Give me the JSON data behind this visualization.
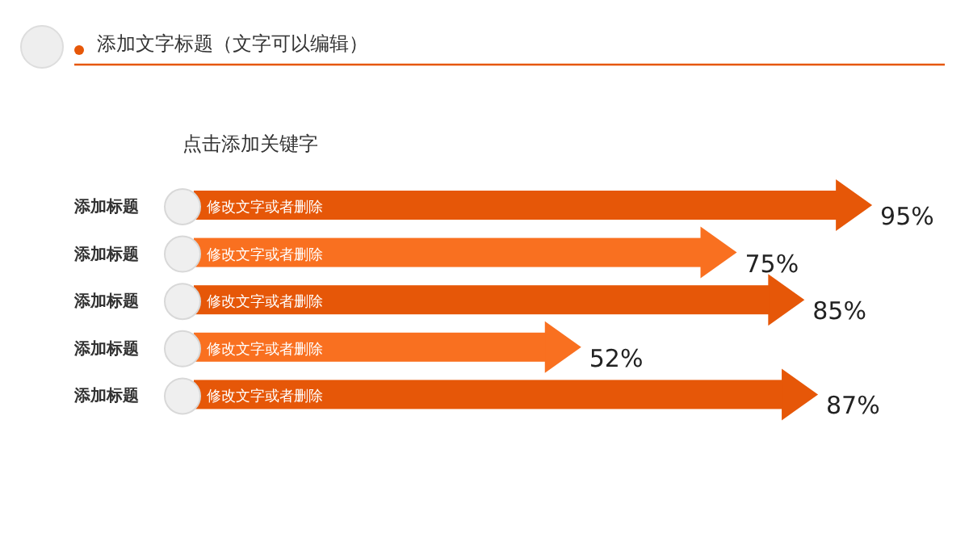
{
  "chart_data": {
    "type": "bar",
    "orientation": "horizontal",
    "title": "添加文字标题（文字可以编辑）",
    "subtitle": "点击添加关键字",
    "categories": [
      "添加标题",
      "添加标题",
      "添加标题",
      "添加标题",
      "添加标题"
    ],
    "values": [
      95,
      75,
      85,
      52,
      87
    ],
    "value_labels": [
      "95%",
      "75%",
      "85%",
      "52%",
      "87%"
    ],
    "colors": [
      "#e65708",
      "#f97020",
      "#e65708",
      "#f97020",
      "#e65708"
    ],
    "annotations": [
      "修改文字或者删除",
      "修改文字或者删除",
      "修改文字或者删除",
      "修改文字或者删除",
      "修改文字或者删除"
    ]
  }
}
